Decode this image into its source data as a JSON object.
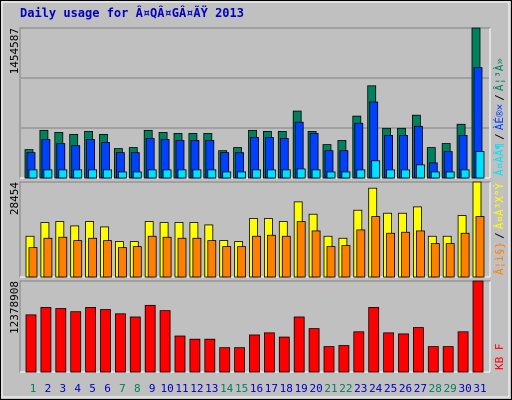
{
  "chart_data": [
    {
      "type": "bar",
      "title": "Daily usage for Â¤QÂ¤GÂ¤ÃŸ 2013",
      "ylim": [
        0,
        1454587
      ],
      "yticks": [
        1454587
      ],
      "legend_separator": "/",
      "series": [
        {
          "name": "Â¤À­Â¶",
          "color": "#00e0ff",
          "values": [
            79000,
            79000,
            79000,
            79000,
            79000,
            79000,
            59000,
            59000,
            79000,
            79000,
            79000,
            79000,
            79000,
            59000,
            59000,
            79000,
            79000,
            79000,
            88000,
            79000,
            59000,
            59000,
            79000,
            167000,
            79000,
            79000,
            128000,
            59000,
            59000,
            79000,
            256000
          ]
        },
        {
          "name": "ÀÉ®×",
          "color": "#0040ff",
          "values": [
            246000,
            373000,
            334000,
            314000,
            373000,
            344000,
            246000,
            246000,
            383000,
            373000,
            364000,
            364000,
            364000,
            246000,
            246000,
            393000,
            393000,
            383000,
            541000,
            432000,
            265000,
            265000,
            531000,
            737000,
            413000,
            413000,
            501000,
            147000,
            256000,
            413000,
            1071000
          ]
        },
        {
          "name": "Â¦³À»",
          "color": "#00805c",
          "values": [
            275000,
            462000,
            442000,
            423000,
            452000,
            423000,
            285000,
            295000,
            462000,
            442000,
            432000,
            432000,
            432000,
            265000,
            295000,
            462000,
            452000,
            452000,
            649000,
            452000,
            324000,
            364000,
            600000,
            894000,
            482000,
            482000,
            609000,
            295000,
            334000,
            521000,
            1454587
          ]
        }
      ]
    },
    {
      "type": "bar",
      "ylim": [
        0,
        28454
      ],
      "yticks": [
        28454
      ],
      "legend_separator": "/",
      "series": [
        {
          "name": "Â¦ì§}",
          "color": "#ff8000",
          "values": [
            8800,
            11600,
            11900,
            10900,
            11600,
            10900,
            8800,
            9100,
            12200,
            11900,
            11600,
            11600,
            10900,
            9100,
            9100,
            12200,
            12500,
            12200,
            16600,
            13800,
            9100,
            9400,
            14100,
            18100,
            13100,
            13400,
            13800,
            10000,
            10000,
            13100,
            18100
          ]
        },
        {
          "name": "Â¤À³X°Ý",
          "color": "#ffff00",
          "values": [
            12200,
            16300,
            16600,
            15300,
            16600,
            15000,
            10600,
            10600,
            16600,
            16300,
            16300,
            16300,
            15600,
            10900,
            10600,
            17500,
            17500,
            16600,
            22500,
            18800,
            12200,
            11600,
            20000,
            26600,
            19100,
            19100,
            21000,
            12200,
            12200,
            18400,
            28454
          ]
        }
      ]
    },
    {
      "type": "bar",
      "ylim": [
        0,
        12378908
      ],
      "yticks": [
        12378908
      ],
      "categories": [
        "1",
        "2",
        "3",
        "4",
        "5",
        "6",
        "7",
        "8",
        "9",
        "10",
        "11",
        "12",
        "13",
        "14",
        "15",
        "16",
        "17",
        "18",
        "19",
        "20",
        "21",
        "22",
        "23",
        "24",
        "25",
        "26",
        "27",
        "28",
        "29",
        "30",
        "31"
      ],
      "category_colors": [
        "#00805c",
        "#0000c0",
        "#0000c0",
        "#0000c0",
        "#0000c0",
        "#0000c0",
        "#00805c",
        "#00805c",
        "#0000c0",
        "#0000c0",
        "#0000c0",
        "#0000c0",
        "#0000c0",
        "#00805c",
        "#00805c",
        "#0000c0",
        "#0000c0",
        "#0000c0",
        "#0000c0",
        "#0000c0",
        "#00805c",
        "#00805c",
        "#0000c0",
        "#0000c0",
        "#0000c0",
        "#0000c0",
        "#0000c0",
        "#00805c",
        "#00805c",
        "#0000c0",
        "#0000c0"
      ],
      "series": [
        {
          "name": "KB F",
          "color": "#ff0000",
          "values": [
            7773000,
            8780000,
            8636000,
            8205000,
            8780000,
            8493000,
            7917000,
            7485000,
            9068000,
            8349000,
            4894000,
            4462000,
            4462000,
            3311000,
            3311000,
            5038000,
            5326000,
            4750000,
            7485000,
            5902000,
            3455000,
            3599000,
            5470000,
            8780000,
            5326000,
            5182000,
            6046000,
            3455000,
            3455000,
            5470000,
            12378908
          ]
        }
      ]
    }
  ]
}
